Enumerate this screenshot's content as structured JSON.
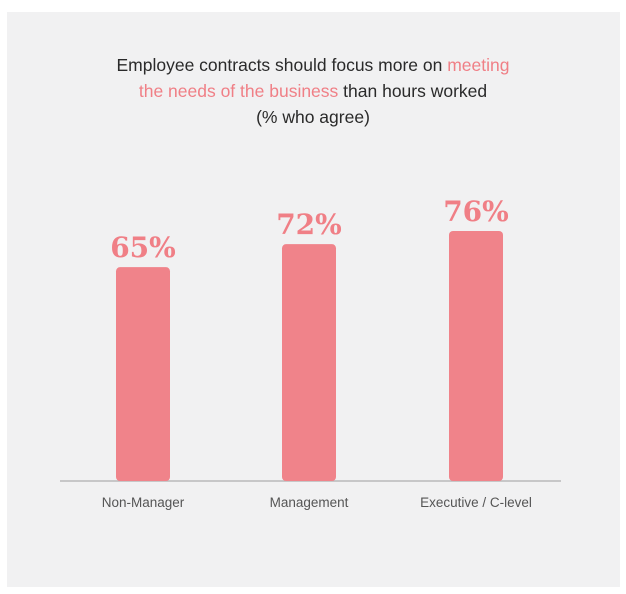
{
  "chart_data": {
    "type": "bar",
    "title": {
      "part1": "Employee contracts should focus more on ",
      "highlight": "meeting the needs of the business",
      "part2": " than hours worked",
      "subtitle": "(% who agree)"
    },
    "categories": [
      "Non-Manager",
      "Management",
      "Executive / C-level"
    ],
    "values": [
      65,
      72,
      76
    ],
    "value_labels": [
      "65%",
      "72%",
      "76%"
    ],
    "ylim": [
      0,
      100
    ],
    "grid": false,
    "legend": "none"
  },
  "colors": {
    "bar": "#f0838a",
    "accent": "#f07f86",
    "baseline": "#b9b9b9",
    "background": "#f1f1f2"
  }
}
